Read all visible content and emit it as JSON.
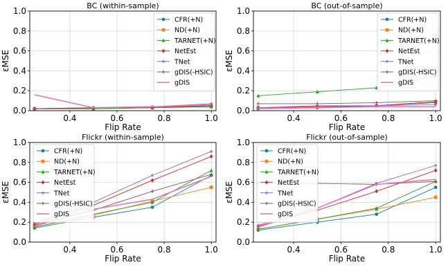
{
  "chart_data": [
    {
      "type": "line",
      "title": "BC (within-sample)",
      "xlabel": "Flip Rate",
      "ylabel": "εMSE",
      "xlim": [
        0.23,
        1.02
      ],
      "ylim": [
        0,
        1.0
      ],
      "xticks": [
        0.4,
        0.6,
        0.8,
        1.0
      ],
      "xtick_labels": [
        "0.4",
        "0.6",
        "0.8",
        "1.0"
      ],
      "yticks": [
        0,
        0.2,
        0.4,
        0.6,
        0.8,
        1.0
      ],
      "ytick_labels": [
        "0.0",
        "0.2",
        "0.4",
        "0.6",
        "0.8",
        "1.0"
      ],
      "grid": true,
      "legend_position": "top-right",
      "x": [
        0.25,
        0.5,
        0.75,
        1.0
      ],
      "series": [
        {
          "name": "CFR(+N)",
          "color": "#1f77b4",
          "marker": "circle",
          "values": [
            0.02,
            0.02,
            0.03,
            0.04
          ]
        },
        {
          "name": "ND(+N)",
          "color": "#ff7f0e",
          "marker": "square",
          "values": [
            0.02,
            0.02,
            0.03,
            0.05
          ]
        },
        {
          "name": "TARNET(+N)",
          "color": "#2ca02c",
          "marker": "triangle",
          "values": [
            0.02,
            0.02,
            0.03,
            0.04
          ]
        },
        {
          "name": "NetEst",
          "color": "#d62728",
          "marker": "diamond",
          "values": [
            0.02,
            0.03,
            0.03,
            0.05
          ]
        },
        {
          "name": "TNet",
          "color": "#9467bd",
          "marker": "star",
          "values": [
            0.02,
            0.03,
            0.04,
            0.07
          ]
        },
        {
          "name": "gDIS(-HSIC)",
          "color": "#8c564b",
          "marker": "plus",
          "values": [
            0.02,
            0.03,
            0.04,
            0.05
          ]
        },
        {
          "name": "gDIS",
          "color": "#e377c2",
          "marker": "none",
          "values": [
            0.16,
            0.03,
            0.04,
            0.06
          ]
        }
      ]
    },
    {
      "type": "line",
      "title": "BC (out-of-sample)",
      "xlabel": "Flip Rate",
      "ylabel": "εMSE",
      "xlim": [
        0.23,
        1.02
      ],
      "ylim": [
        0,
        1.0
      ],
      "xticks": [
        0.4,
        0.6,
        0.8,
        1.0
      ],
      "xtick_labels": [
        "0.4",
        "0.6",
        "0.8",
        "1.0"
      ],
      "yticks": [
        0,
        0.2,
        0.4,
        0.6,
        0.8,
        1.0
      ],
      "ytick_labels": [
        "0.0",
        "0.2",
        "0.4",
        "0.6",
        "0.8",
        "1.0"
      ],
      "grid": true,
      "legend_position": "top-right",
      "x": [
        0.25,
        0.5,
        0.75,
        1.0
      ],
      "series": [
        {
          "name": "CFR(+N)",
          "color": "#1f77b4",
          "marker": "circle",
          "values": [
            0.02,
            0.03,
            0.05,
            0.08
          ]
        },
        {
          "name": "ND(+N)",
          "color": "#ff7f0e",
          "marker": "square",
          "values": [
            0.03,
            0.04,
            0.05,
            0.09
          ]
        },
        {
          "name": "TARNET(+N)",
          "color": "#2ca02c",
          "marker": "triangle",
          "values": [
            0.15,
            0.19,
            0.23,
            0.35
          ]
        },
        {
          "name": "NetEst",
          "color": "#d62728",
          "marker": "diamond",
          "values": [
            0.03,
            0.04,
            0.05,
            0.09
          ]
        },
        {
          "name": "TNet",
          "color": "#9467bd",
          "marker": "star",
          "values": [
            0.03,
            0.05,
            0.05,
            0.06
          ]
        },
        {
          "name": "gDIS(-HSIC)",
          "color": "#8c564b",
          "marker": "plus",
          "values": [
            0.07,
            0.07,
            0.08,
            0.1
          ]
        },
        {
          "name": "gDIS",
          "color": "#e377c2",
          "marker": "none",
          "values": [
            0.02,
            0.03,
            0.04,
            0.04
          ]
        }
      ]
    },
    {
      "type": "line",
      "title": "Flickr (within-sample)",
      "xlabel": "Flip Rate",
      "ylabel": "εMSE",
      "xlim": [
        0.23,
        1.02
      ],
      "ylim": [
        0,
        1.0
      ],
      "xticks": [
        0.4,
        0.6,
        0.8,
        1.0
      ],
      "xtick_labels": [
        "0.4",
        "0.6",
        "0.8",
        "1.0"
      ],
      "yticks": [
        0,
        0.2,
        0.4,
        0.6,
        0.8,
        1.0
      ],
      "ytick_labels": [
        "0.0",
        "0.2",
        "0.4",
        "0.6",
        "0.8",
        "1.0"
      ],
      "grid": true,
      "legend_position": "top-left",
      "x": [
        0.25,
        0.5,
        0.75,
        1.0
      ],
      "series": [
        {
          "name": "CFR(+N)",
          "color": "#1f77b4",
          "marker": "circle",
          "values": [
            0.14,
            0.25,
            0.35,
            0.67
          ]
        },
        {
          "name": "ND(+N)",
          "color": "#ff7f0e",
          "marker": "square",
          "values": [
            0.15,
            0.27,
            0.41,
            0.55
          ]
        },
        {
          "name": "TARNET(+N)",
          "color": "#2ca02c",
          "marker": "triangle",
          "values": [
            0.15,
            0.28,
            0.4,
            0.72
          ]
        },
        {
          "name": "NetEst",
          "color": "#d62728",
          "marker": "diamond",
          "values": [
            0.18,
            0.37,
            0.62,
            0.86
          ]
        },
        {
          "name": "TNet",
          "color": "#9467bd",
          "marker": "star",
          "values": [
            0.19,
            0.4,
            0.67,
            0.91
          ]
        },
        {
          "name": "gDIS(-HSIC)",
          "color": "#8c564b",
          "marker": "plus",
          "values": [
            0.17,
            0.32,
            0.51,
            0.68
          ]
        },
        {
          "name": "gDIS",
          "color": "#e377c2",
          "marker": "none",
          "values": [
            0.16,
            0.33,
            0.43,
            0.66
          ]
        }
      ]
    },
    {
      "type": "line",
      "title": "Flickr (out-of-sample)",
      "xlabel": "Flip Rate",
      "ylabel": "εMSE",
      "xlim": [
        0.23,
        1.02
      ],
      "ylim": [
        0,
        1.0
      ],
      "xticks": [
        0.4,
        0.6,
        0.8,
        1.0
      ],
      "xtick_labels": [
        "0.4",
        "0.6",
        "0.8",
        "1.0"
      ],
      "yticks": [
        0,
        0.2,
        0.4,
        0.6,
        0.8,
        1.0
      ],
      "ytick_labels": [
        "0.0",
        "0.2",
        "0.4",
        "0.6",
        "0.8",
        "1.0"
      ],
      "grid": true,
      "legend_position": "top-left",
      "x": [
        0.25,
        0.5,
        0.75,
        1.0
      ],
      "series": [
        {
          "name": "CFR(+N)",
          "color": "#1f77b4",
          "marker": "circle",
          "values": [
            0.12,
            0.2,
            0.28,
            0.55
          ]
        },
        {
          "name": "ND(+N)",
          "color": "#ff7f0e",
          "marker": "square",
          "values": [
            0.13,
            0.23,
            0.33,
            0.45
          ]
        },
        {
          "name": "TARNET(+N)",
          "color": "#2ca02c",
          "marker": "triangle",
          "values": [
            0.13,
            0.23,
            0.34,
            0.61
          ]
        },
        {
          "name": "NetEst",
          "color": "#d62728",
          "marker": "diamond",
          "values": [
            0.16,
            0.32,
            0.51,
            0.72
          ]
        },
        {
          "name": "TNet",
          "color": "#9467bd",
          "marker": "star",
          "values": [
            0.17,
            0.34,
            0.59,
            0.77
          ]
        },
        {
          "name": "gDIS(-HSIC)",
          "color": "#8c564b",
          "marker": "plus",
          "values": [
            0.59,
            0.59,
            0.58,
            0.61
          ]
        },
        {
          "name": "gDIS",
          "color": "#e377c2",
          "marker": "none",
          "values": [
            0.15,
            0.34,
            0.58,
            0.63
          ]
        }
      ]
    }
  ]
}
